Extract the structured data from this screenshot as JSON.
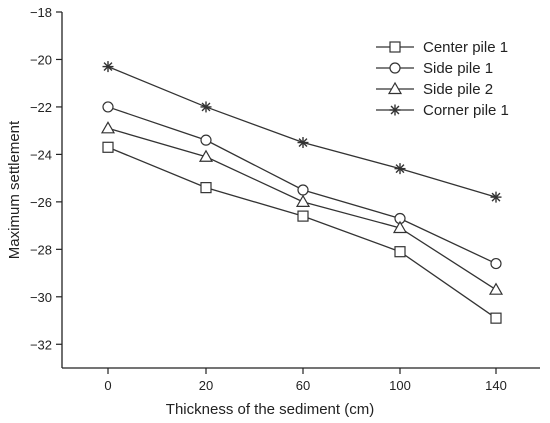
{
  "chart_data": {
    "type": "line",
    "title": "",
    "xlabel": "Thickness of the sediment (cm)",
    "ylabel": "Maximum settlement",
    "categories": [
      "0",
      "20",
      "60",
      "100",
      "140"
    ],
    "ylim": [
      -33,
      -18
    ],
    "yticks": [
      "-18",
      "-20",
      "-22",
      "-24",
      "-26",
      "-28",
      "-30",
      "-32"
    ],
    "grid": false,
    "legend_position": "top-right",
    "series": [
      {
        "name": "Center pile 1",
        "marker": "square",
        "values": [
          -23.7,
          -25.4,
          -26.6,
          -28.1,
          -30.9
        ]
      },
      {
        "name": "Side pile 1",
        "marker": "circle",
        "values": [
          -22.0,
          -23.4,
          -25.5,
          -26.7,
          -28.6
        ]
      },
      {
        "name": "Side pile 2",
        "marker": "triangle",
        "values": [
          -22.9,
          -24.1,
          -26.0,
          -27.1,
          -29.7
        ]
      },
      {
        "name": "Corner pile 1",
        "marker": "star",
        "values": [
          -20.3,
          -22.0,
          -23.5,
          -24.6,
          -25.8
        ]
      }
    ]
  }
}
